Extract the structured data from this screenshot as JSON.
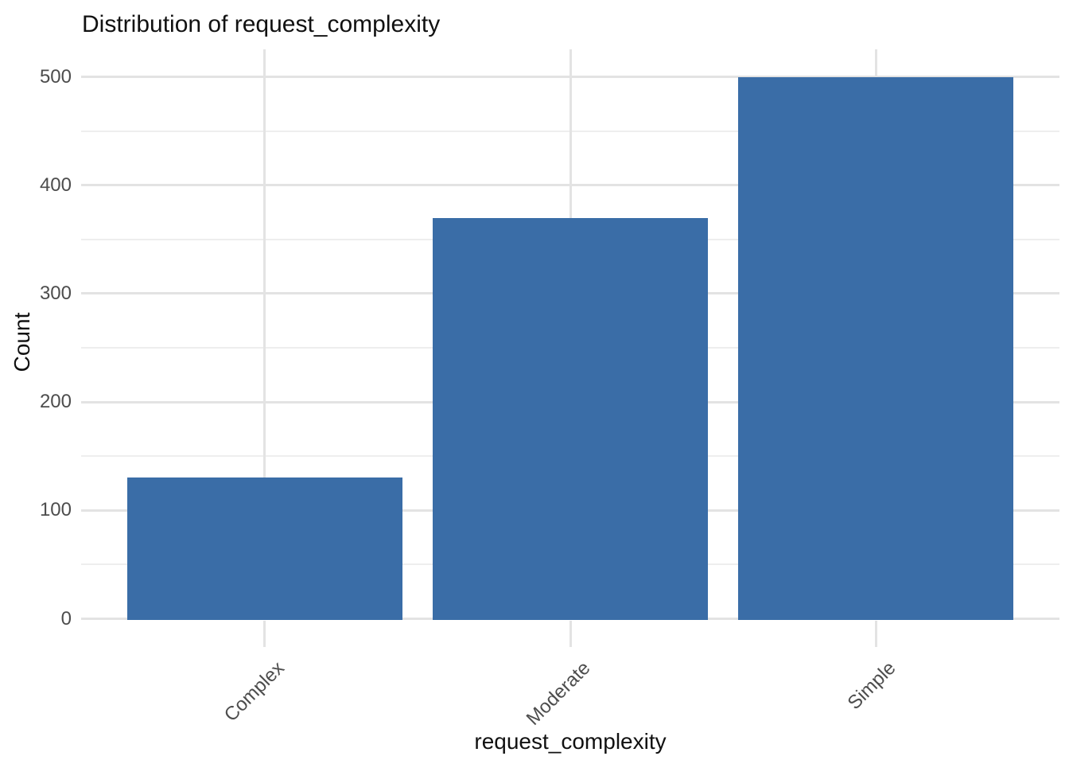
{
  "chart_data": {
    "type": "bar",
    "title": "Distribution of request_complexity",
    "xlabel": "request_complexity",
    "ylabel": "Count",
    "categories": [
      "Complex",
      "Moderate",
      "Simple"
    ],
    "values": [
      130,
      370,
      500
    ],
    "ylim": [
      0,
      525
    ],
    "yticks_major": [
      0,
      100,
      200,
      300,
      400,
      500
    ],
    "yticks_minor": [
      50,
      150,
      250,
      350,
      450
    ],
    "x_tick_rotation_deg": 45,
    "legend": "none",
    "grid": "horizontal major+minor, vertical major at category centers",
    "colors": {
      "bar_fill": "#3A6DA7",
      "background": "#FFFFFF",
      "gridline_major": "#E3E3E3",
      "gridline_minor": "#EEEEEE",
      "axis_tick_mark": "#E3E3E3",
      "tick_label": "#4D4D4D",
      "title_text": "#111111"
    }
  }
}
